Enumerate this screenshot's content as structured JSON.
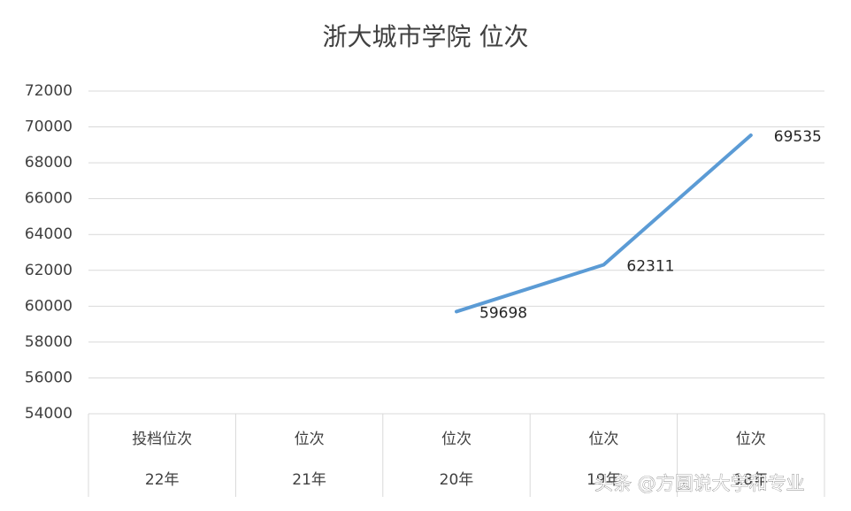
{
  "chart_data": {
    "type": "line",
    "title": "浙大城市学院 位次",
    "categories": [
      [
        "投档位次",
        "22年"
      ],
      [
        "位次",
        "21年"
      ],
      [
        "位次",
        "20年"
      ],
      [
        "位次",
        "19年"
      ],
      [
        "位次",
        "18年"
      ]
    ],
    "values": [
      null,
      null,
      59698,
      62311,
      69535
    ],
    "color": "#5b9bd5",
    "ylim": [
      54000,
      72000
    ],
    "yticks": [
      54000,
      56000,
      58000,
      60000,
      62000,
      64000,
      66000,
      68000,
      70000,
      72000
    ],
    "grid": true
  },
  "watermark": "头条 @方圆说大学和专业"
}
